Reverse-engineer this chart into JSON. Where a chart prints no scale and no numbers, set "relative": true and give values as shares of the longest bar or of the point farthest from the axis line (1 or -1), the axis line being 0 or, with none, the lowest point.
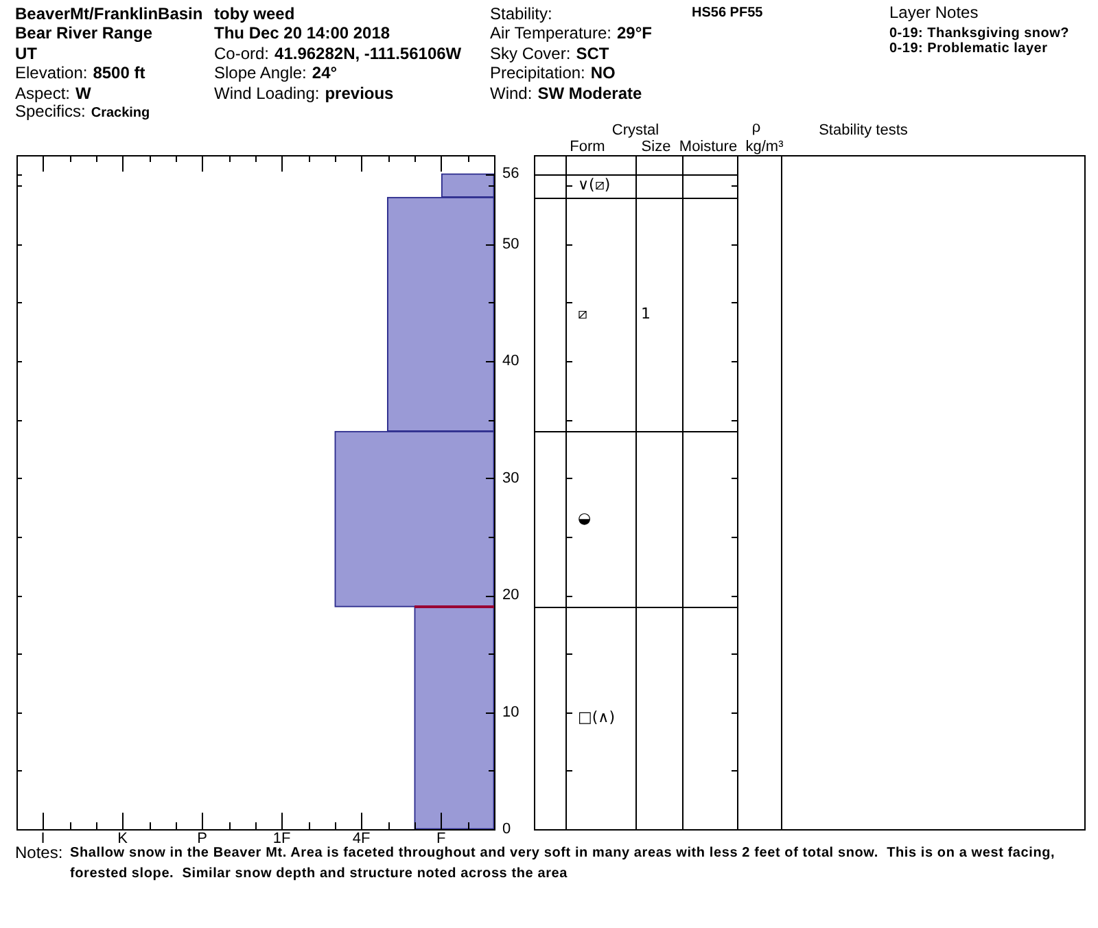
{
  "chart_data": [
    {
      "type": "other",
      "annotations": [
        "BeaverMt/FranklinBasin",
        "toby weed",
        "Bear River Range",
        "UT",
        "Elevation:",
        "8500 ft",
        "Aspect:",
        "W",
        "Specifics:",
        "Cracking",
        "Thu Dec 20 14:00 2018",
        "Co-ord:",
        "41.96282N, -111.56106W",
        "Slope Angle:",
        "24°",
        "Wind Loading:",
        "previous",
        "Stability:",
        "Air Temperature:",
        "29°F",
        "Sky Cover:",
        "SCT",
        "Precipitation:",
        "NO",
        "Wind:",
        "SW Moderate",
        "HS56 PF55",
        "Layer Notes",
        "0-19: Thanksgiving snow?",
        "0-19: Problematic layer"
      ]
    },
    {
      "type": "bar",
      "orientation": "horizontal",
      "relative": true,
      "x": [
        9.5,
        26.5,
        44,
        55
      ],
      "values": [
        0.5,
        1,
        0.67,
        0.33
      ],
      "color": "#9a9ad6",
      "ylim": [
        0,
        57.6
      ],
      "yticks": [
        0,
        {
          "value": 5,
          "label": null
        },
        10,
        {
          "value": 15,
          "label": null
        },
        20,
        {
          "value": 25,
          "label": null
        },
        30,
        {
          "value": 35,
          "label": null
        },
        40,
        {
          "value": 45,
          "label": null
        },
        50,
        {
          "value": 55,
          "label": null
        },
        56
      ],
      "ref_lines": [
        {
          "axis": "y",
          "value": 19,
          "color": "#990033"
        }
      ],
      "annotations": [
        "I",
        "K",
        "P",
        "1F",
        "4F",
        "F",
        "Crystal",
        "Form",
        "Size",
        "Moisture",
        "ρ",
        "kg/m³",
        "Stability tests",
        "∨(⧄)",
        "⧄",
        "1",
        "◒",
        "□(∧)"
      ]
    },
    {
      "type": "other",
      "annotations": [
        "Notes:",
        "Shallow snow in the Beaver Mt. Area is faceted throughout and very soft in many areas with less 2 feet of total snow.  This is on a west facing, forested slope.  Similar snow depth and structure noted across the area"
      ]
    }
  ]
}
